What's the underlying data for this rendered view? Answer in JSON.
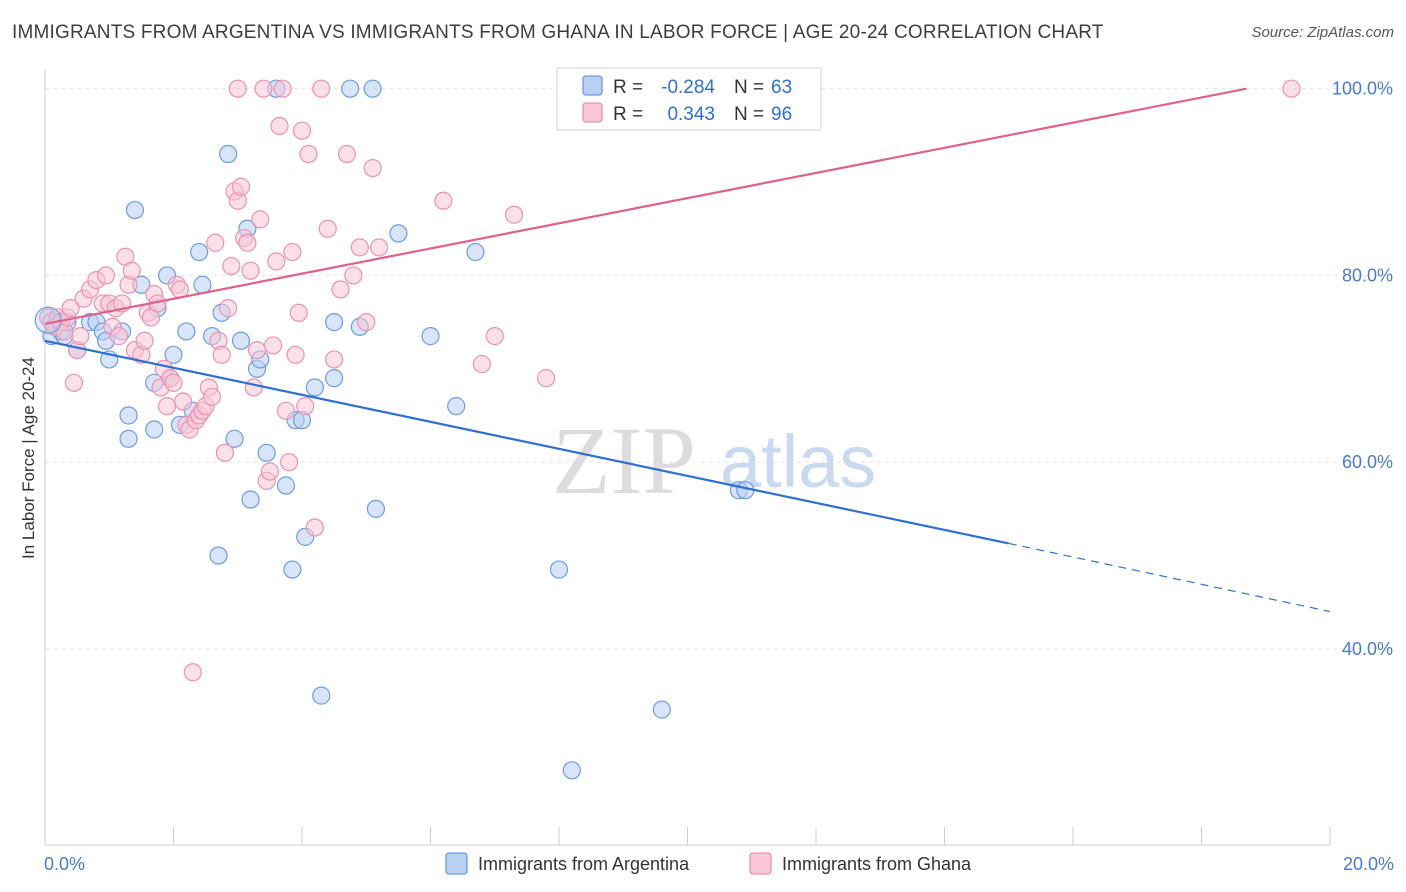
{
  "title": "IMMIGRANTS FROM ARGENTINA VS IMMIGRANTS FROM GHANA IN LABOR FORCE | AGE 20-24 CORRELATION CHART",
  "source": "Source: ZipAtlas.com",
  "watermark": {
    "zip": "ZIP",
    "atlas": "atlas"
  },
  "colors": {
    "argentina_fill": "#b8d0f2",
    "argentina_stroke": "#6f9be0",
    "argentina_line": "#2e6fd1",
    "ghana_fill": "#f8c6d6",
    "ghana_stroke": "#ea93b0",
    "ghana_line": "#e0608c",
    "tick_label": "#4a7bc8",
    "grid": "#e2e2e2"
  },
  "stats_legend": {
    "rows": [
      {
        "r_label": "R =",
        "r_value": "-0.284",
        "n_label": "N =",
        "n_value": "63"
      },
      {
        "r_label": "R =",
        "r_value": "0.343",
        "n_label": "N =",
        "n_value": "96"
      }
    ]
  },
  "chart_data": {
    "type": "scatter",
    "title": "IMMIGRANTS FROM ARGENTINA VS IMMIGRANTS FROM GHANA IN LABOR FORCE | AGE 20-24 CORRELATION CHART",
    "xlabel": "",
    "ylabel": "In Labor Force | Age 20-24",
    "xlim": [
      0,
      20
    ],
    "ylim": [
      19,
      102
    ],
    "x_ticks": [
      {
        "value": 0,
        "label": "0.0%"
      },
      {
        "value": 20,
        "label": "20.0%"
      }
    ],
    "y_ticks": [
      {
        "value": 40,
        "label": "40.0%"
      },
      {
        "value": 60,
        "label": "60.0%"
      },
      {
        "value": 80,
        "label": "80.0%"
      },
      {
        "value": 100,
        "label": "100.0%"
      }
    ],
    "grid": true,
    "legend_position": "bottom",
    "series": [
      {
        "name": "Immigrants from Argentina",
        "trend": {
          "x": [
            0,
            15
          ],
          "y": [
            73.0,
            51.3
          ],
          "dashed_to": [
            20,
            44.0
          ]
        },
        "points": [
          [
            0.05,
            75.5
          ],
          [
            0.1,
            73.5
          ],
          [
            0.15,
            74.5
          ],
          [
            0.2,
            75
          ],
          [
            0.25,
            74
          ],
          [
            0.3,
            73.5
          ],
          [
            0.35,
            75
          ],
          [
            0.5,
            72
          ],
          [
            0.7,
            75
          ],
          [
            0.8,
            75
          ],
          [
            0.9,
            74
          ],
          [
            0.95,
            73
          ],
          [
            1.0,
            71
          ],
          [
            1.2,
            74
          ],
          [
            1.3,
            65
          ],
          [
            1.3,
            62.5
          ],
          [
            1.4,
            87
          ],
          [
            1.5,
            79
          ],
          [
            1.7,
            63.5
          ],
          [
            1.7,
            68.5
          ],
          [
            1.75,
            76.5
          ],
          [
            1.9,
            80
          ],
          [
            1.95,
            69
          ],
          [
            2.0,
            71.5
          ],
          [
            2.1,
            64
          ],
          [
            2.2,
            74
          ],
          [
            2.3,
            65.5
          ],
          [
            2.4,
            82.5
          ],
          [
            2.45,
            79
          ],
          [
            2.6,
            73.5
          ],
          [
            2.7,
            50
          ],
          [
            2.75,
            76
          ],
          [
            2.85,
            93
          ],
          [
            2.95,
            62.5
          ],
          [
            3.05,
            73
          ],
          [
            3.15,
            85
          ],
          [
            3.2,
            56
          ],
          [
            3.3,
            70
          ],
          [
            3.35,
            71
          ],
          [
            3.45,
            61
          ],
          [
            3.6,
            100
          ],
          [
            3.75,
            57.5
          ],
          [
            3.85,
            48.5
          ],
          [
            3.9,
            64.5
          ],
          [
            4.0,
            64.5
          ],
          [
            4.05,
            52
          ],
          [
            4.2,
            68
          ],
          [
            4.3,
            35
          ],
          [
            4.5,
            69
          ],
          [
            4.5,
            75
          ],
          [
            4.75,
            100
          ],
          [
            4.9,
            74.5
          ],
          [
            5.1,
            100
          ],
          [
            5.15,
            55
          ],
          [
            5.5,
            84.5
          ],
          [
            6.0,
            73.5
          ],
          [
            6.4,
            66
          ],
          [
            6.7,
            82.5
          ],
          [
            8.0,
            48.5
          ],
          [
            8.2,
            27
          ],
          [
            9.6,
            33.5
          ],
          [
            10.8,
            57
          ],
          [
            10.9,
            57
          ]
        ]
      },
      {
        "name": "Immigrants from Ghana",
        "trend": {
          "x": [
            0,
            18.7
          ],
          "y": [
            74.8,
            100
          ]
        },
        "points": [
          [
            0.05,
            75.5
          ],
          [
            0.1,
            75
          ],
          [
            0.15,
            74.5
          ],
          [
            0.2,
            75.5
          ],
          [
            0.25,
            75
          ],
          [
            0.3,
            74
          ],
          [
            0.35,
            75.5
          ],
          [
            0.4,
            76.5
          ],
          [
            0.45,
            68.5
          ],
          [
            0.5,
            72
          ],
          [
            0.55,
            73.5
          ],
          [
            0.6,
            77.5
          ],
          [
            0.7,
            78.5
          ],
          [
            0.8,
            79.5
          ],
          [
            0.9,
            77
          ],
          [
            0.95,
            80
          ],
          [
            1.0,
            77
          ],
          [
            1.05,
            74.5
          ],
          [
            1.1,
            76.5
          ],
          [
            1.15,
            73.5
          ],
          [
            1.2,
            77
          ],
          [
            1.25,
            82
          ],
          [
            1.3,
            79
          ],
          [
            1.35,
            80.5
          ],
          [
            1.4,
            72
          ],
          [
            1.5,
            71.5
          ],
          [
            1.55,
            73
          ],
          [
            1.6,
            76
          ],
          [
            1.65,
            75.5
          ],
          [
            1.7,
            78
          ],
          [
            1.75,
            77
          ],
          [
            1.8,
            68
          ],
          [
            1.85,
            70
          ],
          [
            1.9,
            66
          ],
          [
            1.95,
            69
          ],
          [
            2.0,
            68.5
          ],
          [
            2.05,
            79
          ],
          [
            2.1,
            78.5
          ],
          [
            2.15,
            66.5
          ],
          [
            2.2,
            64
          ],
          [
            2.25,
            63.5
          ],
          [
            2.3,
            37.5
          ],
          [
            2.35,
            64.5
          ],
          [
            2.4,
            65
          ],
          [
            2.45,
            65.5
          ],
          [
            2.5,
            66
          ],
          [
            2.55,
            68
          ],
          [
            2.6,
            67
          ],
          [
            2.65,
            83.5
          ],
          [
            2.7,
            73
          ],
          [
            2.75,
            71.5
          ],
          [
            2.8,
            61
          ],
          [
            2.85,
            76.5
          ],
          [
            2.9,
            81
          ],
          [
            2.95,
            89
          ],
          [
            3.0,
            88
          ],
          [
            3.05,
            89.5
          ],
          [
            3.1,
            84
          ],
          [
            3.15,
            83.5
          ],
          [
            3.2,
            80.5
          ],
          [
            3.25,
            68
          ],
          [
            3.3,
            72
          ],
          [
            3.35,
            86
          ],
          [
            3.4,
            100
          ],
          [
            3.45,
            58
          ],
          [
            3.5,
            59
          ],
          [
            3.55,
            72.5
          ],
          [
            3.6,
            81.5
          ],
          [
            3.65,
            96
          ],
          [
            3.7,
            100
          ],
          [
            3.75,
            65.5
          ],
          [
            3.8,
            60
          ],
          [
            3.85,
            82.5
          ],
          [
            3.9,
            71.5
          ],
          [
            3.95,
            76
          ],
          [
            4.0,
            95.5
          ],
          [
            4.05,
            66
          ],
          [
            4.1,
            93
          ],
          [
            4.2,
            53
          ],
          [
            4.3,
            100
          ],
          [
            4.4,
            85
          ],
          [
            4.5,
            71
          ],
          [
            4.6,
            78.5
          ],
          [
            4.7,
            93
          ],
          [
            4.8,
            80
          ],
          [
            4.9,
            83
          ],
          [
            5.0,
            75
          ],
          [
            5.1,
            91.5
          ],
          [
            5.2,
            83
          ],
          [
            6.2,
            88
          ],
          [
            6.8,
            70.5
          ],
          [
            7.0,
            73.5
          ],
          [
            7.3,
            86.5
          ],
          [
            7.8,
            69
          ],
          [
            19.4,
            100
          ],
          [
            3.0,
            100
          ]
        ]
      }
    ]
  },
  "bottom_legend": {
    "items": [
      {
        "label": "Immigrants from Argentina"
      },
      {
        "label": "Immigrants from Ghana"
      }
    ]
  }
}
